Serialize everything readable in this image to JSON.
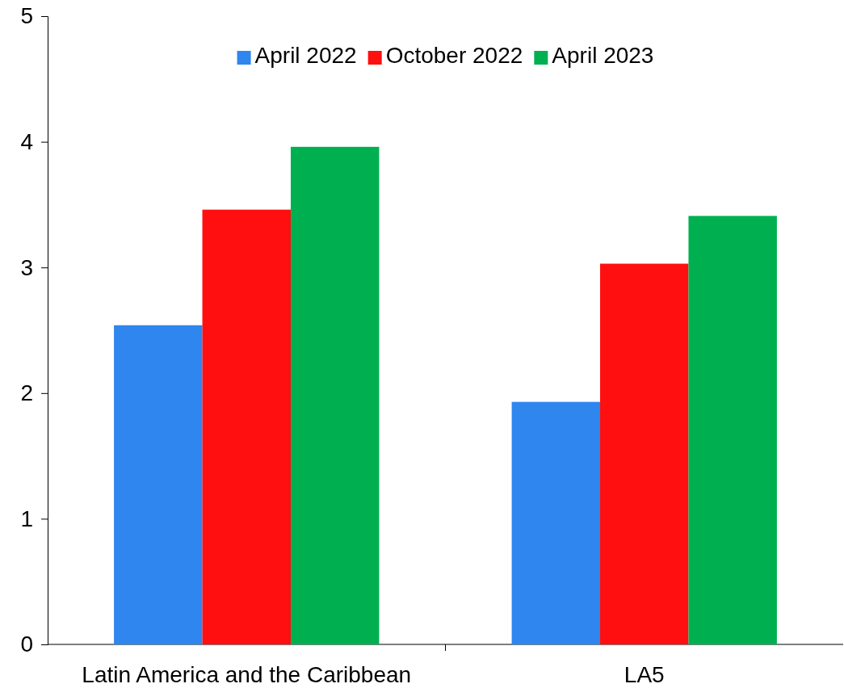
{
  "chart_data": {
    "type": "bar",
    "categories": [
      "Latin America and the Caribbean",
      "LA5"
    ],
    "series": [
      {
        "name": "April 2022",
        "color": "#2e86ee",
        "values": [
          2.54,
          1.93
        ]
      },
      {
        "name": "October 2022",
        "color": "#ff0f0f",
        "values": [
          3.46,
          3.03
        ]
      },
      {
        "name": "April 2023",
        "color": "#00b050",
        "values": [
          3.96,
          3.41
        ]
      }
    ],
    "ylim": [
      0,
      5
    ],
    "yticks": [
      0,
      1,
      2,
      3,
      4,
      5
    ],
    "grid": false,
    "legend": "top"
  }
}
